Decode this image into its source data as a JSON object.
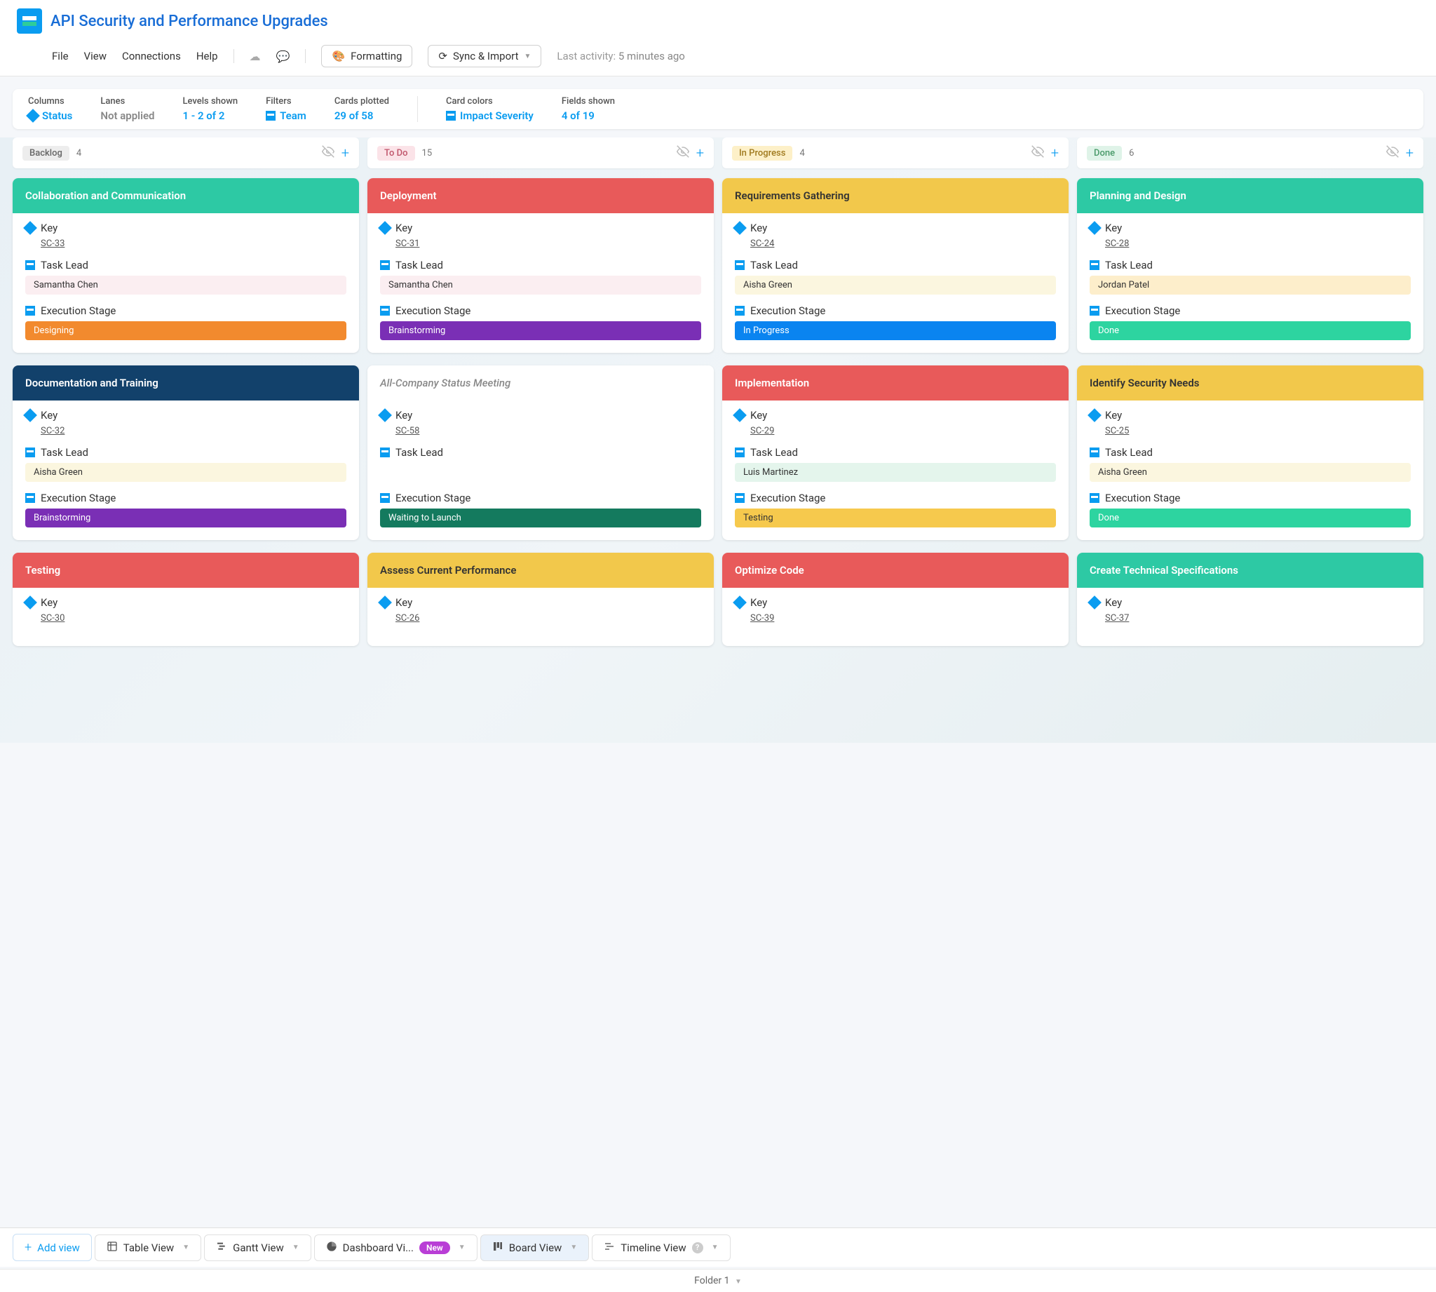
{
  "header": {
    "title": "API Security and Performance Upgrades",
    "menu": [
      "File",
      "View",
      "Connections",
      "Help"
    ],
    "formatting_btn": "Formatting",
    "sync_btn": "Sync & Import",
    "activity_label": "Last activity:",
    "activity_time": "5 minutes ago"
  },
  "config": {
    "items": [
      {
        "label": "Columns",
        "value": "Status",
        "icon": "diamond"
      },
      {
        "label": "Lanes",
        "value": "Not applied",
        "gray": true
      },
      {
        "label": "Levels shown",
        "value": "1 - 2 of 2"
      },
      {
        "label": "Filters",
        "value": "Team",
        "icon": "square"
      },
      {
        "label": "Cards plotted",
        "value": "29 of 58"
      }
    ],
    "items2": [
      {
        "label": "Card colors",
        "value": "Impact Severity",
        "icon": "square"
      },
      {
        "label": "Fields shown",
        "value": "4 of 19"
      }
    ]
  },
  "pills": {
    "backlog": {
      "bg": "#ededed",
      "fg": "#666"
    },
    "todo": {
      "bg": "#fbe3e8",
      "fg": "#c0556b"
    },
    "inprogress": {
      "bg": "#fdf0c8",
      "fg": "#a07a1e"
    },
    "done": {
      "bg": "#dff3e8",
      "fg": "#4a9a6a"
    }
  },
  "head_colors": {
    "teal": "#2dc9a4",
    "red": "#e85a5a",
    "gold": "#f2c84b",
    "navy": "#12416b",
    "white": "#ffffff"
  },
  "lead_colors": {
    "samantha": "#fbeef1",
    "aisha": "#fbf6df",
    "luis": "#e4f5ec",
    "jordan": "#fdeecb",
    "none": "#ffffff"
  },
  "stage_colors": {
    "designing": {
      "bg": "#f28a2e",
      "fg": "#fff"
    },
    "brainstorming": {
      "bg": "#7a2fb5",
      "fg": "#fff"
    },
    "inprogress": {
      "bg": "#0a84f0",
      "fg": "#fff"
    },
    "done": {
      "bg": "#2dd4a0",
      "fg": "#fff"
    },
    "waiting": {
      "bg": "#147a5e",
      "fg": "#fff"
    },
    "testing": {
      "bg": "#f6c94d",
      "fg": "#333"
    }
  },
  "field_labels": {
    "key": "Key",
    "lead": "Task Lead",
    "stage": "Execution Stage"
  },
  "columns": [
    {
      "name": "Backlog",
      "count": 4,
      "pill": "backlog",
      "cards": [
        {
          "title": "Collaboration and Communication",
          "head": "teal",
          "key": "SC-33",
          "lead": "Samantha Chen",
          "lead_c": "samantha",
          "stage": "Designing",
          "stage_c": "designing"
        },
        {
          "title": "Documentation and Training",
          "head": "navy",
          "key": "SC-32",
          "lead": "Aisha Green",
          "lead_c": "aisha",
          "stage": "Brainstorming",
          "stage_c": "brainstorming"
        },
        {
          "title": "Testing",
          "head": "red",
          "key": "SC-30",
          "partial": true
        }
      ]
    },
    {
      "name": "To Do",
      "count": 15,
      "pill": "todo",
      "cards": [
        {
          "title": "Deployment",
          "head": "red",
          "key": "SC-31",
          "lead": "Samantha Chen",
          "lead_c": "samantha",
          "stage": "Brainstorming",
          "stage_c": "brainstorming"
        },
        {
          "title": "All-Company Status Meeting",
          "head": "white",
          "key": "SC-58",
          "lead": "",
          "lead_c": "none",
          "stage": "Waiting to Launch",
          "stage_c": "waiting"
        },
        {
          "title": "Assess Current Performance",
          "head": "gold",
          "key": "SC-26",
          "partial": true
        }
      ]
    },
    {
      "name": "In Progress",
      "count": 4,
      "pill": "inprogress",
      "cards": [
        {
          "title": "Requirements Gathering",
          "head": "gold",
          "key": "SC-24",
          "lead": "Aisha Green",
          "lead_c": "aisha",
          "stage": "In Progress",
          "stage_c": "inprogress"
        },
        {
          "title": "Implementation",
          "head": "red",
          "key": "SC-29",
          "lead": "Luis Martinez",
          "lead_c": "luis",
          "stage": "Testing",
          "stage_c": "testing"
        },
        {
          "title": "Optimize Code",
          "head": "red",
          "key": "SC-39",
          "partial": true
        }
      ]
    },
    {
      "name": "Done",
      "count": 6,
      "pill": "done",
      "cards": [
        {
          "title": "Planning and Design",
          "head": "teal",
          "key": "SC-28",
          "lead": "Jordan Patel",
          "lead_c": "jordan",
          "stage": "Done",
          "stage_c": "done"
        },
        {
          "title": "Identify Security Needs",
          "head": "gold",
          "head_fg": "#333",
          "key": "SC-25",
          "lead": "Aisha Green",
          "lead_c": "aisha",
          "stage": "Done",
          "stage_c": "done"
        },
        {
          "title": "Create Technical Specifications",
          "head": "teal",
          "key": "SC-37",
          "partial": true
        }
      ]
    }
  ],
  "tabs": {
    "addview": "Add view",
    "list": [
      {
        "label": "Table View",
        "icon": "table"
      },
      {
        "label": "Gantt View",
        "icon": "gantt"
      },
      {
        "label": "Dashboard Vi...",
        "icon": "pie",
        "new": true
      },
      {
        "label": "Board View",
        "icon": "board",
        "active": true
      },
      {
        "label": "Timeline View",
        "icon": "timeline",
        "help": true
      }
    ]
  },
  "folder": "Folder 1"
}
